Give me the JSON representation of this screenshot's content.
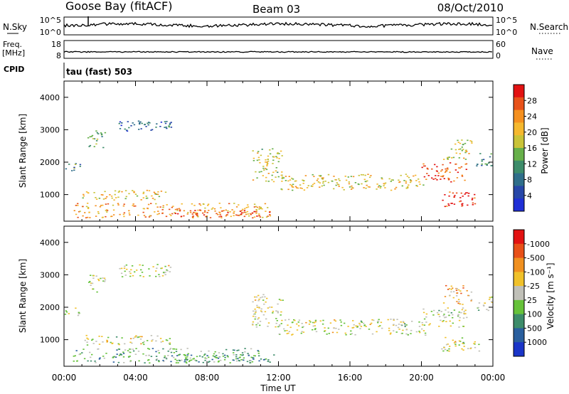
{
  "header": {
    "station": "Goose Bay (fitACF)",
    "beam": "Beam 03",
    "date": "08/Oct/2010"
  },
  "nsky_panel": {
    "label": "N.Sky",
    "right_label": "N.Search",
    "left_ticks": [
      "10^5",
      "10^0"
    ],
    "right_ticks": [
      "10^5",
      "10^0"
    ]
  },
  "freq_panel": {
    "label_line1": "Freq.",
    "label_line2": "[MHz]",
    "right_label": "Nave",
    "left_ticks": [
      "18",
      "8"
    ],
    "right_ticks": [
      "60",
      "0"
    ]
  },
  "cpid_panel": {
    "label": "CPID",
    "value": "tau (fast) 503"
  },
  "chart_data": [
    {
      "type": "heatmap",
      "name": "power-panel",
      "ylabel": "Slant Range [km]",
      "ylim": [
        180,
        4500
      ],
      "yticks": [
        1000,
        2000,
        3000,
        4000
      ],
      "xlim": [
        0,
        24
      ],
      "xtick_labels": [
        "00:00",
        "04:00",
        "08:00",
        "12:00",
        "16:00",
        "20:00",
        "00:00"
      ],
      "colorbar": {
        "label": "Power [dB]",
        "ticks": [
          "4",
          "8",
          "12",
          "16",
          "20",
          "24",
          "28"
        ],
        "colors": [
          "#1f2fd6",
          "#2747a8",
          "#2f6e8a",
          "#3d8c6a",
          "#67b04a",
          "#c9c338",
          "#f5b82e",
          "#f5901f",
          "#e8521a",
          "#e21212"
        ]
      },
      "echo_regions": [
        {
          "t": [
            0.0,
            0.9
          ],
          "range": [
            1750,
            2050
          ],
          "level": 0.35
        },
        {
          "t": [
            1.3,
            2.3
          ],
          "range": [
            2450,
            3000
          ],
          "level": 0.45
        },
        {
          "t": [
            1.0,
            6.0
          ],
          "range": [
            850,
            1150
          ],
          "level": 0.6
        },
        {
          "t": [
            3.0,
            6.0
          ],
          "range": [
            2950,
            3350
          ],
          "level": 0.25
        },
        {
          "t": [
            0.5,
            11.5
          ],
          "range": [
            300,
            750
          ],
          "level": 0.7
        },
        {
          "t": [
            6.0,
            11.8
          ],
          "range": [
            330,
            550
          ],
          "level": 0.85
        },
        {
          "t": [
            10.5,
            12.2
          ],
          "range": [
            1400,
            2450
          ],
          "level": 0.55
        },
        {
          "t": [
            12.0,
            20.3
          ],
          "range": [
            1150,
            1650
          ],
          "level": 0.6
        },
        {
          "t": [
            20.0,
            22.5
          ],
          "range": [
            1400,
            2000
          ],
          "level": 0.85
        },
        {
          "t": [
            21.0,
            23.2
          ],
          "range": [
            650,
            1100
          ],
          "level": 0.95
        },
        {
          "t": [
            21.2,
            22.8
          ],
          "range": [
            2100,
            2700
          ],
          "level": 0.55
        },
        {
          "t": [
            23.0,
            24.0
          ],
          "range": [
            1900,
            2350
          ],
          "level": 0.3
        }
      ]
    },
    {
      "type": "heatmap",
      "name": "velocity-panel",
      "ylabel": "Slant Range [km]",
      "ylim": [
        180,
        4500
      ],
      "yticks": [
        1000,
        2000,
        3000,
        4000
      ],
      "xlim": [
        0,
        24
      ],
      "xlabel": "Time UT",
      "xtick_labels": [
        "00:00",
        "04:00",
        "08:00",
        "12:00",
        "16:00",
        "20:00",
        "00:00"
      ],
      "colorbar": {
        "label": "Velocity [m s⁻¹]",
        "ticks": [
          "1000",
          "500",
          "100",
          "25",
          "-25",
          "-100",
          "-500",
          "-1000"
        ],
        "colors": [
          "#1a35c8",
          "#2a5f9e",
          "#3d8c6a",
          "#66c23a",
          "#c0c0b8",
          "#f0c12a",
          "#f09020",
          "#e85018",
          "#e21212"
        ]
      },
      "echo_regions": [
        {
          "t": [
            0.0,
            0.9
          ],
          "range": [
            1750,
            2050
          ],
          "level": 0.5
        },
        {
          "t": [
            1.3,
            2.3
          ],
          "range": [
            2450,
            3000
          ],
          "level": 0.5
        },
        {
          "t": [
            1.0,
            6.0
          ],
          "range": [
            850,
            1150
          ],
          "level": 0.5
        },
        {
          "t": [
            3.0,
            6.0
          ],
          "range": [
            2950,
            3350
          ],
          "level": 0.5
        },
        {
          "t": [
            0.5,
            11.5
          ],
          "range": [
            300,
            750
          ],
          "level": 0.35
        },
        {
          "t": [
            6.0,
            11.8
          ],
          "range": [
            330,
            550
          ],
          "level": 0.3
        },
        {
          "t": [
            10.5,
            12.2
          ],
          "range": [
            1400,
            2450
          ],
          "level": 0.5
        },
        {
          "t": [
            12.0,
            20.3
          ],
          "range": [
            1150,
            1650
          ],
          "level": 0.5
        },
        {
          "t": [
            20.0,
            22.5
          ],
          "range": [
            1400,
            2000
          ],
          "level": 0.5
        },
        {
          "t": [
            21.0,
            23.2
          ],
          "range": [
            650,
            1100
          ],
          "level": 0.5
        },
        {
          "t": [
            21.2,
            22.8
          ],
          "range": [
            2100,
            2700
          ],
          "level": 0.65
        },
        {
          "t": [
            23.0,
            24.0
          ],
          "range": [
            1900,
            2350
          ],
          "level": 0.5
        }
      ]
    }
  ]
}
